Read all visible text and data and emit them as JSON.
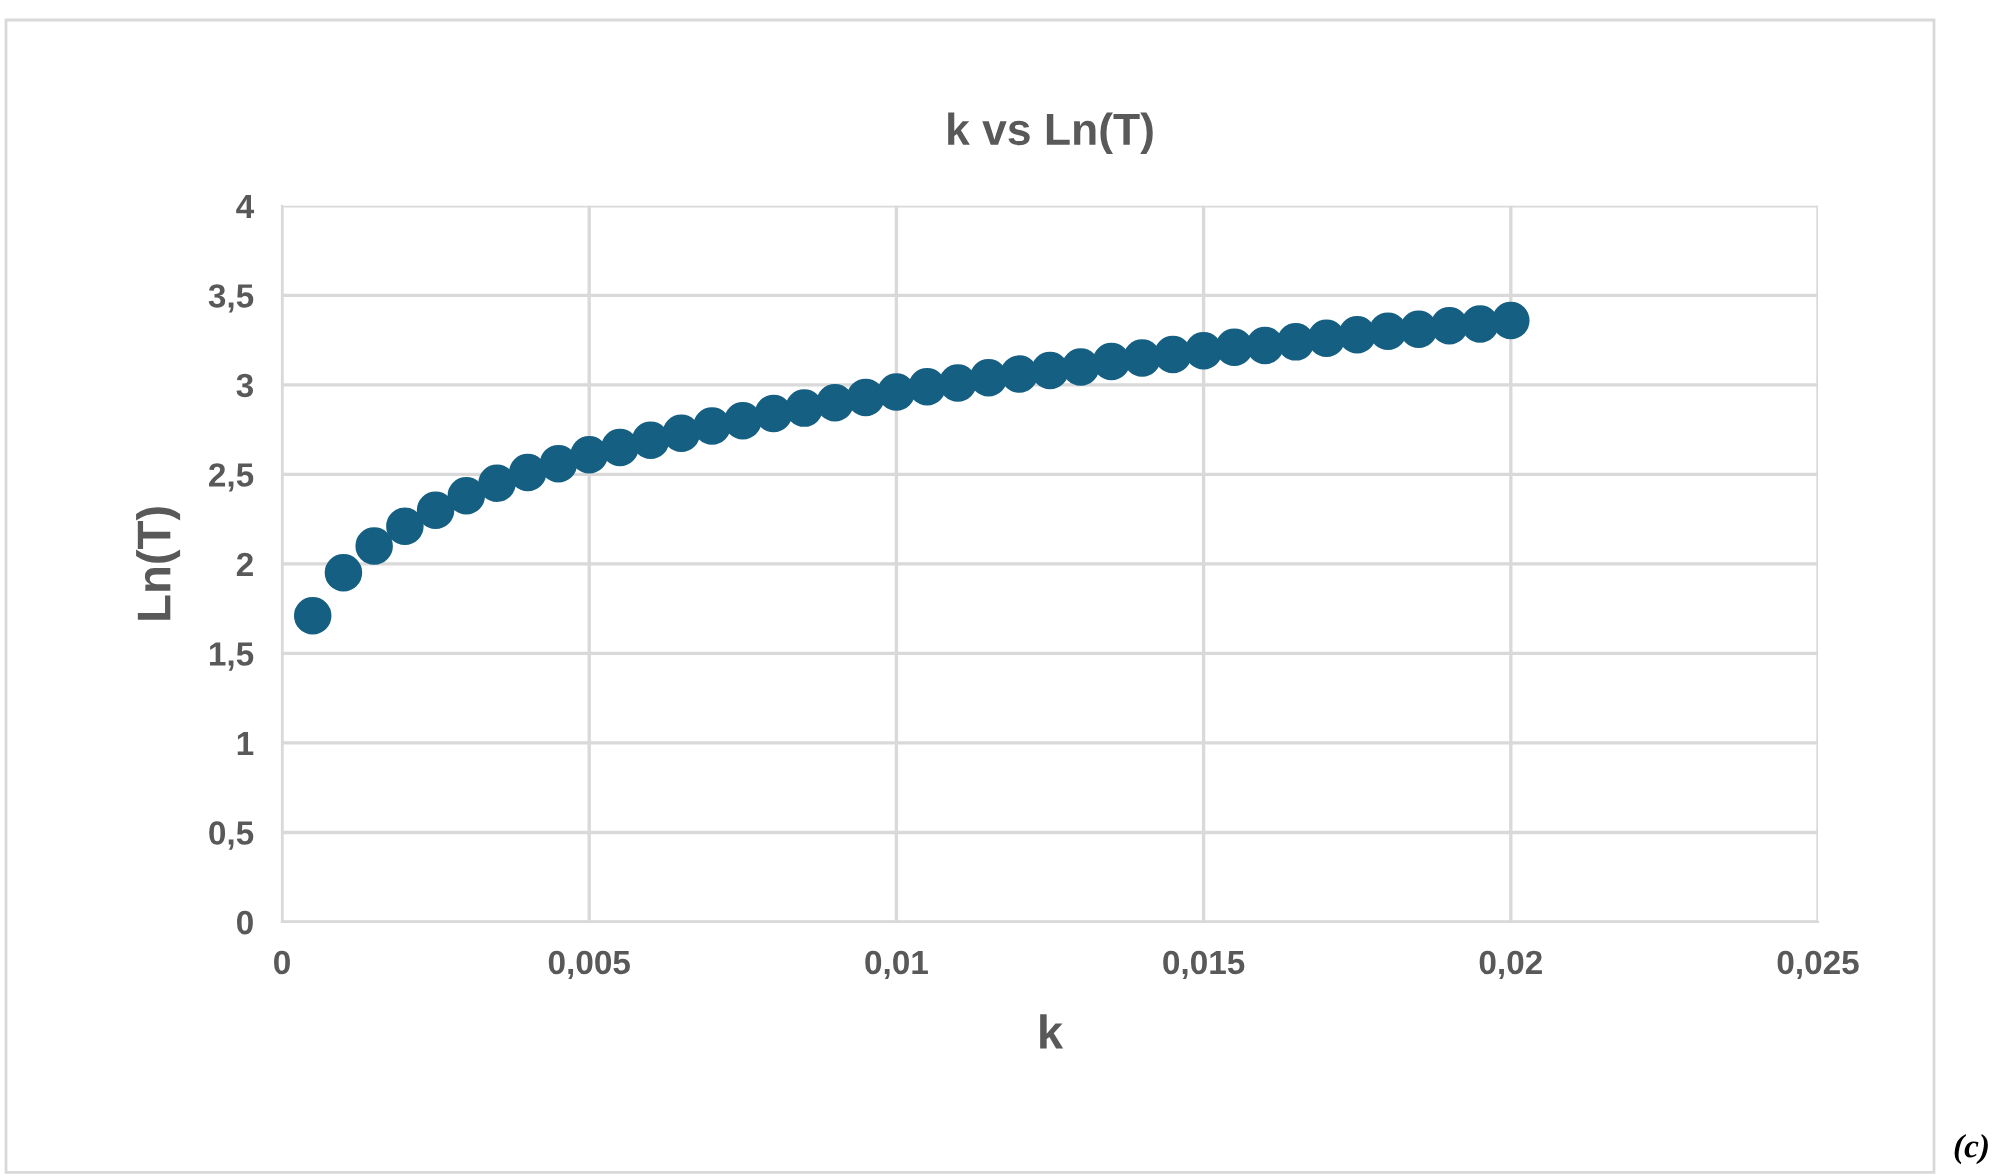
{
  "chart_data": {
    "type": "scatter",
    "title": "k vs Ln(T)",
    "xlabel": "k",
    "ylabel": "Ln(T)",
    "annotations": [
      "(c)"
    ],
    "x": [
      0.0005,
      0.001,
      0.0015,
      0.002,
      0.0025,
      0.003,
      0.0035,
      0.004,
      0.0045,
      0.005,
      0.0055,
      0.006,
      0.0065,
      0.007,
      0.0075,
      0.008,
      0.0085,
      0.009,
      0.0095,
      0.01,
      0.0105,
      0.011,
      0.0115,
      0.012,
      0.0125,
      0.013,
      0.0135,
      0.014,
      0.0145,
      0.015,
      0.0155,
      0.016,
      0.0165,
      0.017,
      0.0175,
      0.018,
      0.0185,
      0.019,
      0.0195,
      0.02
    ],
    "series": [
      {
        "color": "#155f82",
        "values": [
          1.71,
          1.95,
          2.1,
          2.21,
          2.3,
          2.38,
          2.45,
          2.51,
          2.56,
          2.61,
          2.65,
          2.69,
          2.73,
          2.77,
          2.8,
          2.84,
          2.87,
          2.9,
          2.93,
          2.96,
          2.99,
          3.01,
          3.04,
          3.06,
          3.08,
          3.1,
          3.13,
          3.15,
          3.17,
          3.19,
          3.21,
          3.22,
          3.24,
          3.26,
          3.28,
          3.3,
          3.31,
          3.33,
          3.34,
          3.36
        ]
      }
    ],
    "xlim": [
      0,
      0.025
    ],
    "ylim": [
      0,
      4
    ],
    "xticks": [
      0,
      {
        "value": 0.005,
        "label": "0,005"
      },
      {
        "value": 0.01,
        "label": "0,01"
      },
      {
        "value": 0.015,
        "label": "0,015"
      },
      {
        "value": 0.02,
        "label": "0,02"
      },
      {
        "value": 0.025,
        "label": "0,025"
      }
    ],
    "yticks": [
      0,
      {
        "value": 0.5,
        "label": "0,5"
      },
      1,
      {
        "value": 1.5,
        "label": "1,5"
      },
      2,
      {
        "value": 2.5,
        "label": "2,5"
      },
      3,
      {
        "value": 3.5,
        "label": "3,5"
      },
      4
    ],
    "grid": true,
    "marker": "circle"
  }
}
